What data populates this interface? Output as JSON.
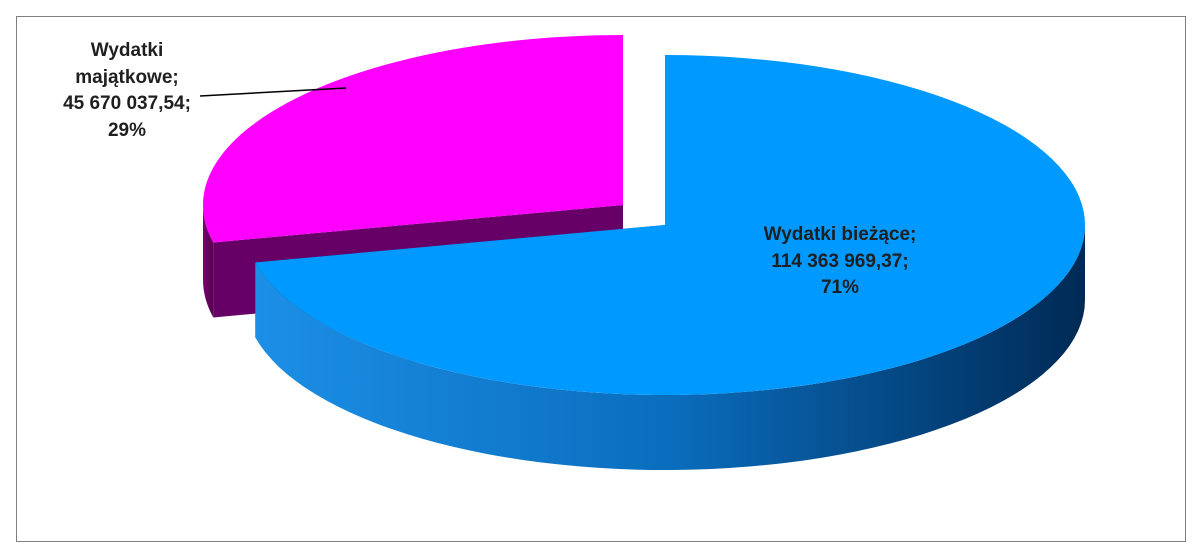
{
  "chart_data": {
    "type": "pie",
    "style": "3d-exploded",
    "slices": [
      {
        "name": "Wydatki bieżące",
        "value_text": "114 363 969,37",
        "value": 114363969.37,
        "percent_text": "71%",
        "percent": 71,
        "color": "#0099ff",
        "side_color": "#005a9a"
      },
      {
        "name": "Wydatki majątkowe",
        "value_text": "45 670 037,54",
        "value": 45670037.54,
        "percent_text": "29%",
        "percent": 29,
        "color": "#ff00ff",
        "side_color": "#660066"
      }
    ],
    "labels": {
      "biezace": {
        "line1": "Wydatki bieżące;",
        "line2": "114 363 969,37;",
        "line3": "71%"
      },
      "majatkowe": {
        "line1": "Wydatki",
        "line2": "majątkowe;",
        "line3": "45 670 037,54;",
        "line4": "29%"
      }
    }
  }
}
